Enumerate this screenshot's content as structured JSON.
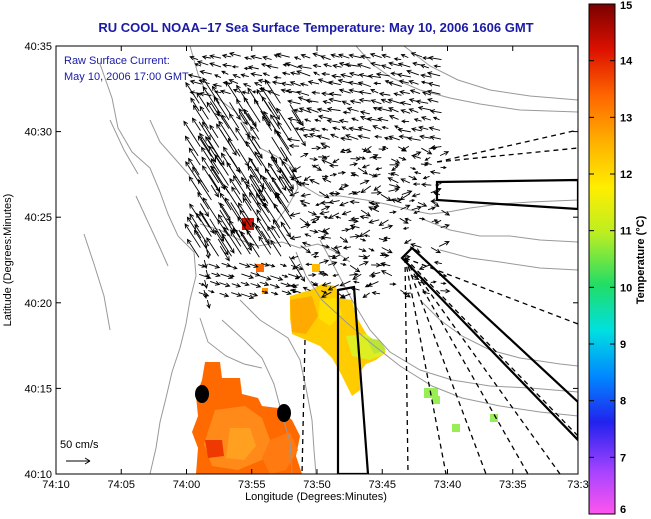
{
  "title": "RU COOL  NOAA–17  Sea Surface Temperature:  May 10, 2006 1606 GMT",
  "annotation": {
    "line1": "Raw Surface Current:",
    "line2": "May 10, 2006 17:00 GMT"
  },
  "scale_label": "50 cm/s",
  "x_axis": {
    "label": "Longitude (Degrees:Minutes)",
    "ticks": [
      "74:10",
      "74:05",
      "74:00",
      "73:55",
      "73:50",
      "73:45",
      "73:40",
      "73:35",
      "73:3"
    ]
  },
  "y_axis": {
    "label": "Latitude (Degrees:Minutes)",
    "ticks": [
      "40:35",
      "40:30",
      "40:25",
      "40:20",
      "40:15",
      "40:10"
    ]
  },
  "colorbar": {
    "label": "Temperature (°C)",
    "ticks": [
      "15",
      "14",
      "13",
      "12",
      "11",
      "10",
      "9",
      "8",
      "7",
      "6"
    ],
    "stops": [
      "#ff55ee",
      "#7733ff",
      "#0000dd",
      "#00aaff",
      "#00e8e8",
      "#33dd55",
      "#ccee22",
      "#ffee00",
      "#ffb000",
      "#ff6a00",
      "#ee2200",
      "#aa0000",
      "#7a0000"
    ]
  },
  "colors": {
    "frame": "#000000",
    "title": "#1a1aa6",
    "coast": "#999999",
    "vector": "#000000"
  }
}
